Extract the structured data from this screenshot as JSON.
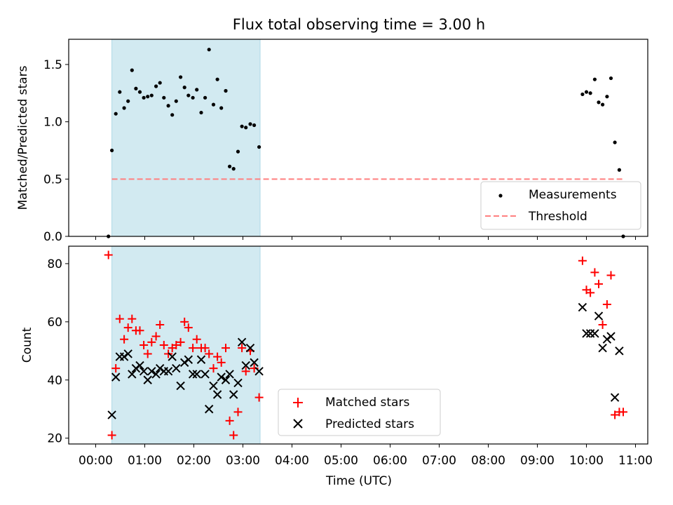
{
  "title": "Flux total observing time = 3.00 h",
  "colors": {
    "span": "#add8e6",
    "threshold": "#ff7f7f",
    "measurements": "#000000",
    "matched": "#ff0000",
    "predicted": "#000000"
  },
  "chart_data": [
    {
      "type": "scatter",
      "id": "top",
      "ylabel": "Matched/Predicted stars",
      "xlim": [
        -0.55,
        11.25
      ],
      "ylim": [
        0,
        1.72
      ],
      "yticks": [
        0.0,
        0.5,
        1.0,
        1.5
      ],
      "ytick_labels": [
        "0.0",
        "0.5",
        "1.0",
        "1.5"
      ],
      "shaded_span": [
        0.33,
        3.35
      ],
      "threshold": {
        "name": "Threshold",
        "y": 0.5,
        "x_range": [
          0.33,
          10.75
        ]
      },
      "legend": {
        "loc": "lower right",
        "entries": [
          "Measurements",
          "Threshold"
        ]
      },
      "series": [
        {
          "name": "Measurements",
          "marker": "dot",
          "points": [
            [
              0.26,
              0.0
            ],
            [
              0.33,
              0.75
            ],
            [
              0.41,
              1.07
            ],
            [
              0.49,
              1.26
            ],
            [
              0.58,
              1.12
            ],
            [
              0.66,
              1.18
            ],
            [
              0.74,
              1.45
            ],
            [
              0.82,
              1.29
            ],
            [
              0.9,
              1.26
            ],
            [
              0.98,
              1.21
            ],
            [
              1.06,
              1.22
            ],
            [
              1.14,
              1.23
            ],
            [
              1.23,
              1.31
            ],
            [
              1.31,
              1.34
            ],
            [
              1.39,
              1.21
            ],
            [
              1.48,
              1.14
            ],
            [
              1.56,
              1.06
            ],
            [
              1.64,
              1.18
            ],
            [
              1.73,
              1.39
            ],
            [
              1.81,
              1.3
            ],
            [
              1.89,
              1.23
            ],
            [
              1.98,
              1.21
            ],
            [
              2.06,
              1.28
            ],
            [
              2.15,
              1.08
            ],
            [
              2.23,
              1.21
            ],
            [
              2.31,
              1.63
            ],
            [
              2.4,
              1.15
            ],
            [
              2.48,
              1.37
            ],
            [
              2.56,
              1.12
            ],
            [
              2.65,
              1.27
            ],
            [
              2.73,
              0.61
            ],
            [
              2.81,
              0.59
            ],
            [
              2.9,
              0.74
            ],
            [
              2.98,
              0.96
            ],
            [
              3.06,
              0.95
            ],
            [
              3.15,
              0.98
            ],
            [
              3.23,
              0.97
            ],
            [
              3.33,
              0.78
            ],
            [
              9.92,
              1.24
            ],
            [
              10.0,
              1.26
            ],
            [
              10.08,
              1.25
            ],
            [
              10.17,
              1.37
            ],
            [
              10.25,
              1.17
            ],
            [
              10.33,
              1.15
            ],
            [
              10.42,
              1.22
            ],
            [
              10.5,
              1.38
            ],
            [
              10.58,
              0.82
            ],
            [
              10.67,
              0.58
            ],
            [
              10.75,
              0.0
            ]
          ]
        }
      ]
    },
    {
      "type": "scatter",
      "id": "bottom",
      "xlabel": "Time (UTC)",
      "ylabel": "Count",
      "xlim": [
        -0.55,
        11.25
      ],
      "ylim": [
        18,
        86
      ],
      "yticks": [
        20,
        40,
        60,
        80
      ],
      "ytick_labels": [
        "20",
        "40",
        "60",
        "80"
      ],
      "xticks": [
        0,
        1,
        2,
        3,
        4,
        5,
        6,
        7,
        8,
        9,
        10,
        11
      ],
      "xtick_labels": [
        "00:00",
        "01:00",
        "02:00",
        "03:00",
        "04:00",
        "05:00",
        "06:00",
        "07:00",
        "08:00",
        "09:00",
        "10:00",
        "11:00"
      ],
      "shaded_span": [
        0.33,
        3.35
      ],
      "legend": {
        "loc": "lower center",
        "entries": [
          "Matched stars",
          "Predicted stars"
        ]
      },
      "series": [
        {
          "name": "Matched stars",
          "marker": "plus",
          "points": [
            [
              0.26,
              83
            ],
            [
              0.33,
              21
            ],
            [
              0.41,
              44
            ],
            [
              0.49,
              61
            ],
            [
              0.58,
              54
            ],
            [
              0.66,
              58
            ],
            [
              0.74,
              61
            ],
            [
              0.82,
              57
            ],
            [
              0.9,
              57
            ],
            [
              0.98,
              52
            ],
            [
              1.06,
              49
            ],
            [
              1.14,
              53
            ],
            [
              1.23,
              55
            ],
            [
              1.31,
              59
            ],
            [
              1.39,
              52
            ],
            [
              1.48,
              49
            ],
            [
              1.56,
              51
            ],
            [
              1.64,
              52
            ],
            [
              1.73,
              53
            ],
            [
              1.81,
              60
            ],
            [
              1.89,
              58
            ],
            [
              1.98,
              51
            ],
            [
              2.06,
              54
            ],
            [
              2.15,
              51
            ],
            [
              2.23,
              51
            ],
            [
              2.31,
              49
            ],
            [
              2.4,
              44
            ],
            [
              2.48,
              48
            ],
            [
              2.56,
              46
            ],
            [
              2.65,
              51
            ],
            [
              2.73,
              26
            ],
            [
              2.81,
              21
            ],
            [
              2.9,
              29
            ],
            [
              2.98,
              51
            ],
            [
              3.06,
              43
            ],
            [
              3.15,
              50
            ],
            [
              3.23,
              44
            ],
            [
              3.33,
              34
            ],
            [
              9.92,
              81
            ],
            [
              10.0,
              71
            ],
            [
              10.08,
              70
            ],
            [
              10.17,
              77
            ],
            [
              10.25,
              73
            ],
            [
              10.33,
              59
            ],
            [
              10.42,
              66
            ],
            [
              10.5,
              76
            ],
            [
              10.58,
              28
            ],
            [
              10.67,
              29
            ],
            [
              10.75,
              29
            ]
          ]
        },
        {
          "name": "Predicted stars",
          "marker": "x",
          "points": [
            [
              0.33,
              28
            ],
            [
              0.41,
              41
            ],
            [
              0.49,
              48
            ],
            [
              0.58,
              48
            ],
            [
              0.66,
              49
            ],
            [
              0.74,
              42
            ],
            [
              0.82,
              44
            ],
            [
              0.9,
              45
            ],
            [
              0.98,
              43
            ],
            [
              1.06,
              40
            ],
            [
              1.14,
              43
            ],
            [
              1.23,
              42
            ],
            [
              1.31,
              44
            ],
            [
              1.39,
              43
            ],
            [
              1.48,
              43
            ],
            [
              1.56,
              48
            ],
            [
              1.64,
              44
            ],
            [
              1.73,
              38
            ],
            [
              1.81,
              46
            ],
            [
              1.89,
              47
            ],
            [
              1.98,
              42
            ],
            [
              2.06,
              42
            ],
            [
              2.15,
              47
            ],
            [
              2.23,
              42
            ],
            [
              2.31,
              30
            ],
            [
              2.4,
              38
            ],
            [
              2.48,
              35
            ],
            [
              2.56,
              41
            ],
            [
              2.65,
              40
            ],
            [
              2.73,
              42
            ],
            [
              2.81,
              35
            ],
            [
              2.9,
              39
            ],
            [
              2.98,
              53
            ],
            [
              3.06,
              45
            ],
            [
              3.15,
              51
            ],
            [
              3.23,
              46
            ],
            [
              3.33,
              43
            ],
            [
              9.92,
              65
            ],
            [
              10.0,
              56
            ],
            [
              10.08,
              56
            ],
            [
              10.17,
              56
            ],
            [
              10.25,
              62
            ],
            [
              10.33,
              51
            ],
            [
              10.42,
              54
            ],
            [
              10.5,
              55
            ],
            [
              10.58,
              34
            ],
            [
              10.67,
              50
            ]
          ]
        }
      ]
    }
  ]
}
